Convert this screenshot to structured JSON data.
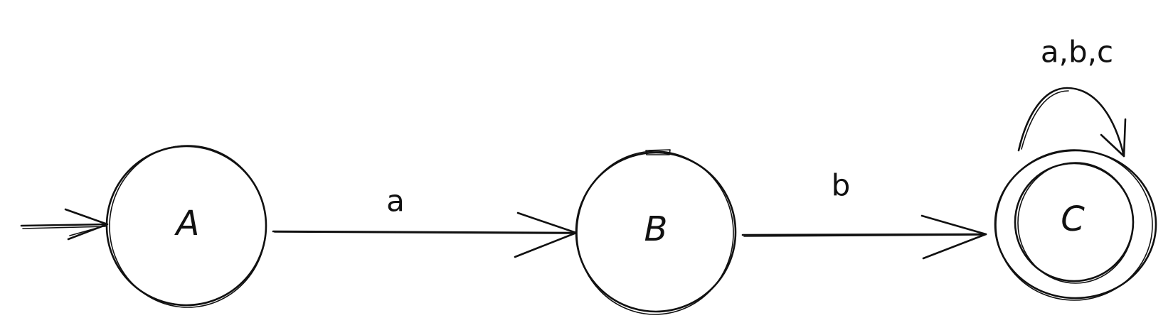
{
  "diagram": {
    "type": "finite-automaton",
    "states": [
      {
        "id": "A",
        "label": "A",
        "initial": true,
        "accepting": false
      },
      {
        "id": "B",
        "label": "B",
        "initial": false,
        "accepting": false
      },
      {
        "id": "C",
        "label": "C",
        "initial": false,
        "accepting": true
      }
    ],
    "transitions": [
      {
        "from": "A",
        "to": "B",
        "label": "a"
      },
      {
        "from": "B",
        "to": "C",
        "label": "b"
      },
      {
        "from": "C",
        "to": "C",
        "label": "a,b,c"
      }
    ],
    "stroke_color": "#111111",
    "background_color": "#ffffff"
  }
}
